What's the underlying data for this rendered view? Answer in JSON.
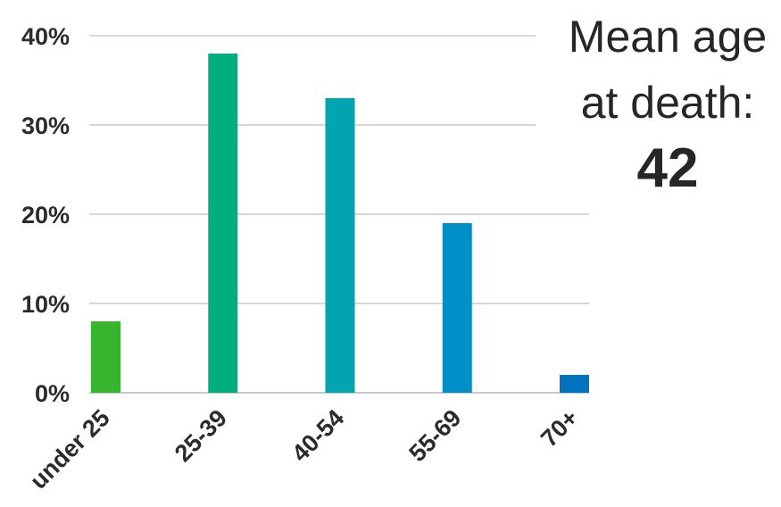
{
  "chart_data": {
    "type": "bar",
    "categories": [
      "under 25",
      "25-39",
      "40-54",
      "55-69",
      "70+"
    ],
    "values": [
      8,
      38,
      33,
      19,
      2
    ],
    "unit": "%",
    "ylim": [
      0,
      40
    ],
    "yticks": [
      0,
      10,
      20,
      30,
      40
    ],
    "ytick_labels": [
      "0%",
      "10%",
      "20%",
      "30%",
      "40%"
    ],
    "grid": true,
    "bar_colors": [
      "#37b52e",
      "#00ad7c",
      "#00a5b0",
      "#008fc6",
      "#0073be"
    ],
    "grid_color": "#c8c8c8",
    "title": "",
    "xlabel": "",
    "ylabel": ""
  },
  "annotation": {
    "line1": "Mean age",
    "line2": "at death:",
    "value": "42"
  }
}
